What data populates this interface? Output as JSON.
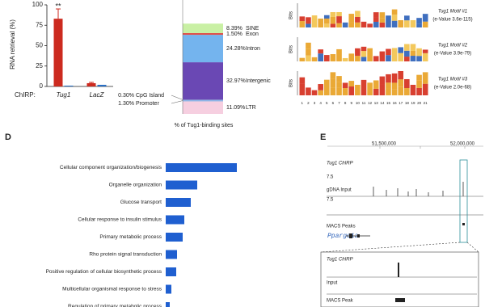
{
  "chart_data": [
    {
      "type": "bar",
      "y_label": "RNA retrieval (%)",
      "x_label": "ChIRP:",
      "categories": [
        "Tug1",
        "LacZ"
      ],
      "series": [
        {
          "color": "#cc2a1f",
          "values": [
            83,
            4
          ],
          "errors": [
            12,
            1
          ]
        },
        {
          "color": "#2a6fc4",
          "values": [
            1,
            2
          ]
        }
      ],
      "ylim": [
        0,
        100
      ],
      "yticks": [
        0,
        25,
        50,
        75,
        100
      ],
      "annotation": "**"
    },
    {
      "type": "stacked-bar",
      "x_label": "% of Tug1-binding sites",
      "categories": [
        "LTR",
        "Promoter",
        "CpG Island",
        "Intergenic",
        "Intron",
        "Exon",
        "SINE"
      ],
      "values": [
        11.09,
        1.3,
        0.3,
        32.97,
        24.28,
        1.5,
        8.39
      ],
      "value_labels": [
        "11.09%",
        "1.30%",
        "0.30%",
        "32.97%",
        "24.28%",
        "1.50%",
        "8.39%"
      ],
      "colors": [
        "#f6cfe0",
        "#8fb8e8",
        "#3a3a9a",
        "#6a48b4",
        "#74b4ee",
        "#e0504a",
        "#c9f0a4"
      ]
    },
    {
      "type": "hbar",
      "categories": [
        "Cellular component organization/biogenesis",
        "Organelle organization",
        "Glucose transport",
        "Cellular response to insulin stimulus",
        "Primary metabolic process",
        "Rho protein signal transduction",
        "Positive regulation of cellular biosynthetic process",
        "Multicellular organismal response to stress",
        "Regulation of primary metabolic process"
      ],
      "values": [
        88,
        39,
        31,
        23,
        21,
        14,
        13,
        7,
        5
      ],
      "color": "#1f5fd0"
    }
  ],
  "motifs": {
    "y_label": "Bits",
    "items": [
      {
        "name": "Tug1 Motif #1",
        "evalue": "(e-Value 3.6e-115)"
      },
      {
        "name": "Tug1 Motif #2",
        "evalue": "(e-Value 3.9e-79)"
      },
      {
        "name": "Tug1 Motif #3",
        "evalue": "(e-Value 2.0e-68)"
      }
    ],
    "positions": [
      "1",
      "2",
      "3",
      "4",
      "5",
      "6",
      "7",
      "8",
      "9",
      "10",
      "11",
      "12",
      "13",
      "14",
      "15",
      "16",
      "17",
      "18",
      "19",
      "20",
      "21"
    ]
  },
  "browser": {
    "coordinates": [
      "51,500,000",
      "52,000,000"
    ],
    "tracks": [
      "Tug1 ChIRP",
      "gDNA Input",
      "MACS Peaks"
    ],
    "scale": [
      "7.5",
      "7.5"
    ],
    "gene": "Ppargc1a",
    "inset_tracks": [
      "Tug1 ChIRP",
      "Input",
      "MACS Peak"
    ]
  },
  "panel_labels": [
    "D",
    "E"
  ]
}
